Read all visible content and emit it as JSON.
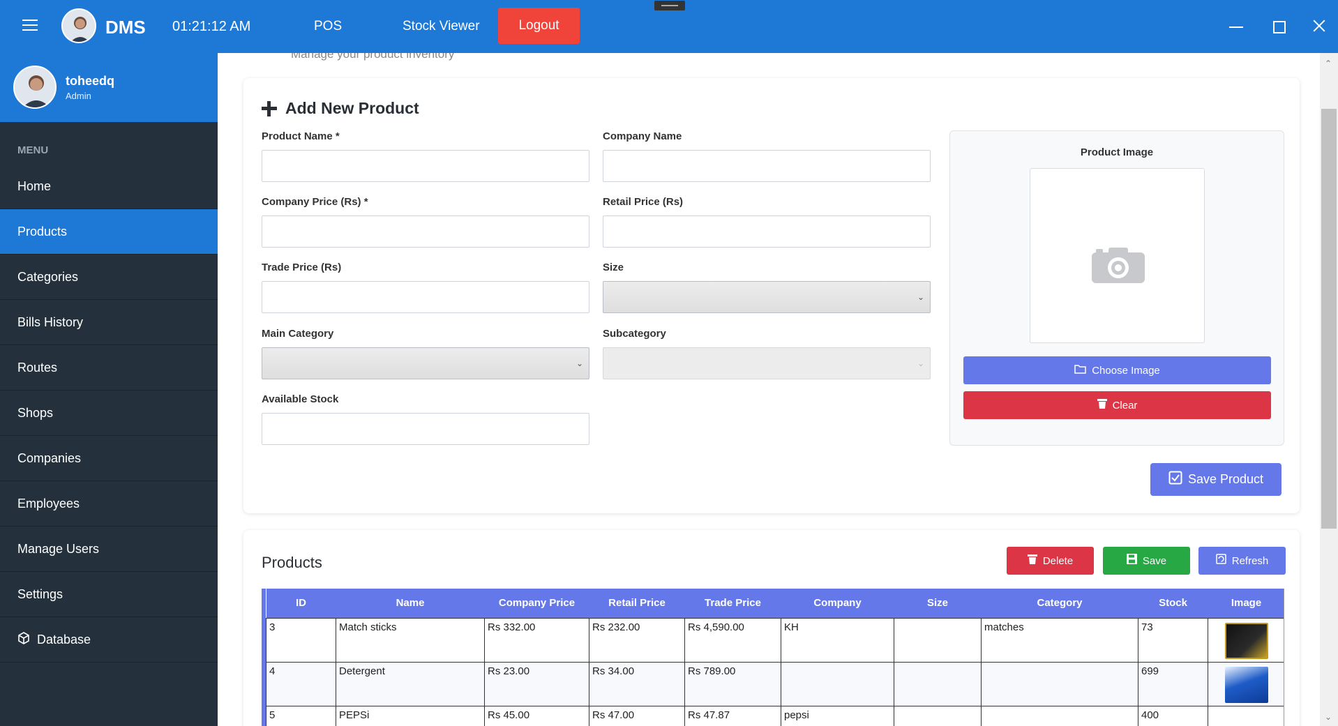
{
  "topbar": {
    "app_name": "DMS",
    "clock": "01:21:12 AM",
    "nav_pos": "POS",
    "nav_stock_viewer": "Stock Viewer",
    "logout": "Logout"
  },
  "user": {
    "name": "toheedq",
    "role": "Admin"
  },
  "sidebar": {
    "menu_label": "MENU",
    "items": [
      {
        "label": "Home"
      },
      {
        "label": "Products"
      },
      {
        "label": "Categories"
      },
      {
        "label": "Bills History"
      },
      {
        "label": "Routes"
      },
      {
        "label": "Shops"
      },
      {
        "label": "Companies"
      },
      {
        "label": "Employees"
      },
      {
        "label": "Manage Users"
      },
      {
        "label": "Settings"
      },
      {
        "label": "Database"
      }
    ],
    "active": "Products"
  },
  "page": {
    "faded_subtitle": "Manage your product inventory"
  },
  "form": {
    "title": "Add New Product",
    "product_name_label": "Product Name *",
    "company_name_label": "Company Name",
    "company_price_label": "Company Price (Rs) *",
    "retail_price_label": "Retail Price (Rs)",
    "trade_price_label": "Trade Price (Rs)",
    "size_label": "Size",
    "main_category_label": "Main Category",
    "subcategory_label": "Subcategory",
    "available_stock_label": "Available Stock",
    "image_title": "Product Image",
    "choose_image": "Choose Image",
    "clear": "Clear",
    "save_product": "Save Product"
  },
  "products": {
    "title": "Products",
    "delete": "Delete",
    "save": "Save",
    "refresh": "Refresh",
    "columns": [
      "ID",
      "Name",
      "Company Price",
      "Retail Price",
      "Trade Price",
      "Company",
      "Size",
      "Category",
      "Stock",
      "Image"
    ],
    "rows": [
      {
        "id": "3",
        "name": "Match sticks",
        "company_price": "Rs 332.00",
        "retail_price": "Rs 232.00",
        "trade_price": "Rs 4,590.00",
        "company": "KH",
        "size": "",
        "category": "matches",
        "stock": "73",
        "image": "matches-thumbnail"
      },
      {
        "id": "4",
        "name": "Detergent",
        "company_price": "Rs 23.00",
        "retail_price": "Rs 34.00",
        "trade_price": "Rs 789.00",
        "company": "",
        "size": "",
        "category": "",
        "stock": "699",
        "image": "detergent-thumbnail"
      },
      {
        "id": "5",
        "name": "PEPSi",
        "company_price": "Rs 45.00",
        "retail_price": "Rs 47.00",
        "trade_price": "Rs 47.87",
        "company": "pepsi",
        "size": "",
        "category": "",
        "stock": "400",
        "image": ""
      }
    ]
  },
  "colors": {
    "primary": "#1e78d6",
    "sidebar": "#24313c",
    "accent": "#6578ea",
    "danger": "#dc3545",
    "success": "#28a745",
    "logout": "#f0443b"
  }
}
